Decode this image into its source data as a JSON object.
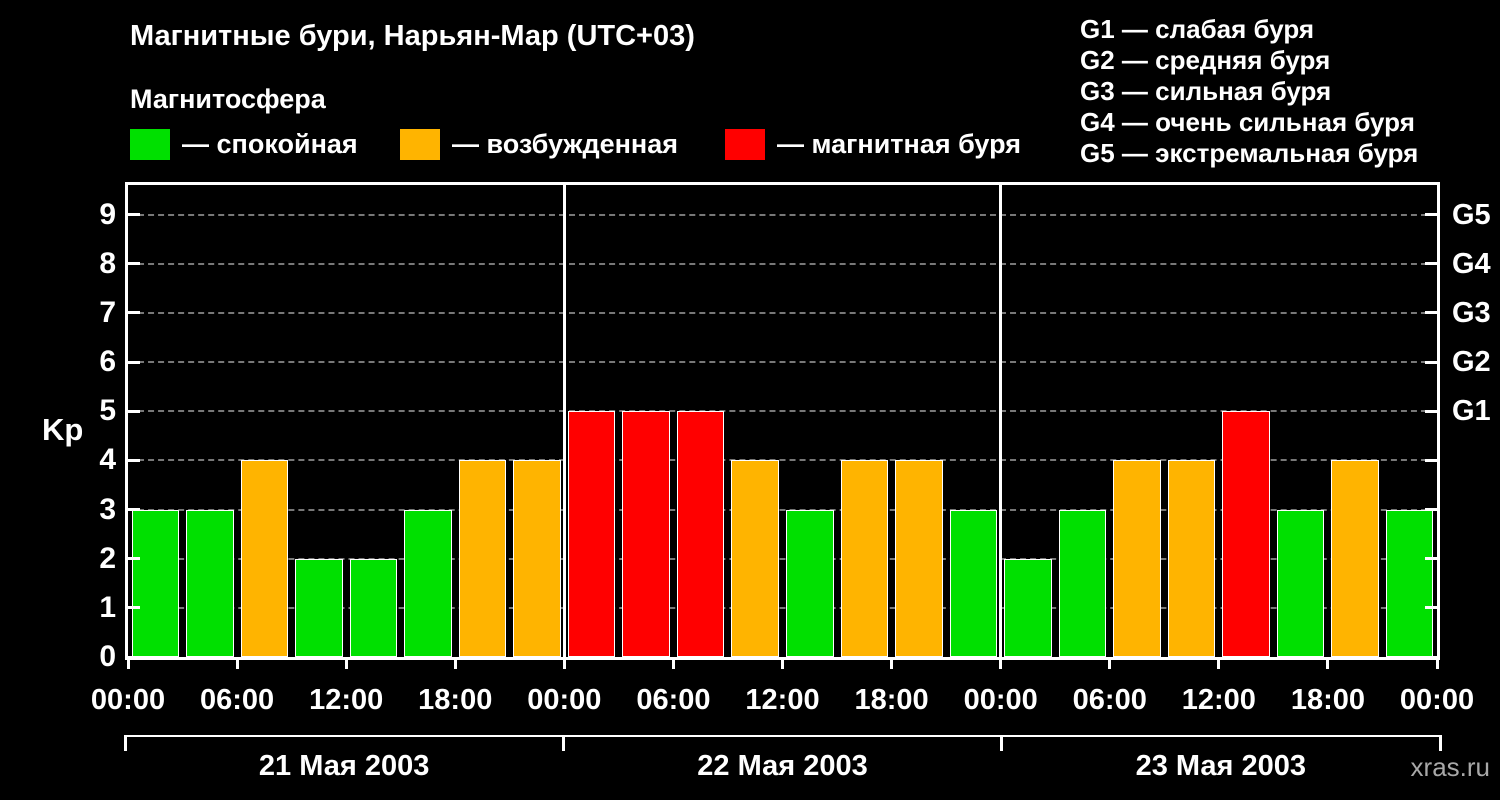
{
  "header": {
    "title": "Магнитные бури, Нарьян-Мар (UTC+03)",
    "subtitle": "Магнитосфера",
    "legend": [
      {
        "key": "quiet",
        "label": "— спокойная",
        "color": "#00e000"
      },
      {
        "key": "excited",
        "label": "— возбужденная",
        "color": "#ffb400"
      },
      {
        "key": "storm",
        "label": "— магнитная буря",
        "color": "#ff0000"
      }
    ],
    "storm_scale": [
      "G1 — слабая буря",
      "G2 — средняя буря",
      "G3 — сильная буря",
      "G4 — очень сильная буря",
      "G5 — экстремальная буря"
    ]
  },
  "chart_data": {
    "type": "bar",
    "ylabel": "Kp",
    "ylim": [
      0,
      9.6
    ],
    "yticks": [
      0,
      1,
      2,
      3,
      4,
      5,
      6,
      7,
      8,
      9
    ],
    "grid": "dashed-horizontal",
    "right_axis_labels": [
      {
        "value": 5,
        "label": "G1"
      },
      {
        "value": 6,
        "label": "G2"
      },
      {
        "value": 7,
        "label": "G3"
      },
      {
        "value": 8,
        "label": "G4"
      },
      {
        "value": 9,
        "label": "G5"
      }
    ],
    "x_time_labels": [
      "00:00",
      "06:00",
      "12:00",
      "18:00",
      "00:00",
      "06:00",
      "12:00",
      "18:00",
      "00:00",
      "06:00",
      "12:00",
      "18:00",
      "00:00"
    ],
    "bar_interval_hours": 3,
    "status_colors": {
      "quiet": "#00e000",
      "excited": "#ffb400",
      "storm": "#ff0000"
    },
    "days": [
      {
        "date": "21 Мая 2003",
        "values": [
          3,
          3,
          4,
          2,
          2,
          3,
          4,
          4
        ],
        "statuses": [
          "quiet",
          "quiet",
          "excited",
          "quiet",
          "quiet",
          "quiet",
          "excited",
          "excited"
        ]
      },
      {
        "date": "22 Мая 2003",
        "values": [
          5,
          5,
          5,
          4,
          3,
          4,
          4,
          3
        ],
        "statuses": [
          "storm",
          "storm",
          "storm",
          "excited",
          "quiet",
          "excited",
          "excited",
          "quiet"
        ]
      },
      {
        "date": "23 Мая 2003",
        "values": [
          2,
          3,
          4,
          4,
          5,
          3,
          4,
          3
        ],
        "statuses": [
          "quiet",
          "quiet",
          "excited",
          "excited",
          "storm",
          "quiet",
          "excited",
          "quiet"
        ]
      }
    ]
  },
  "watermark": "xras.ru"
}
